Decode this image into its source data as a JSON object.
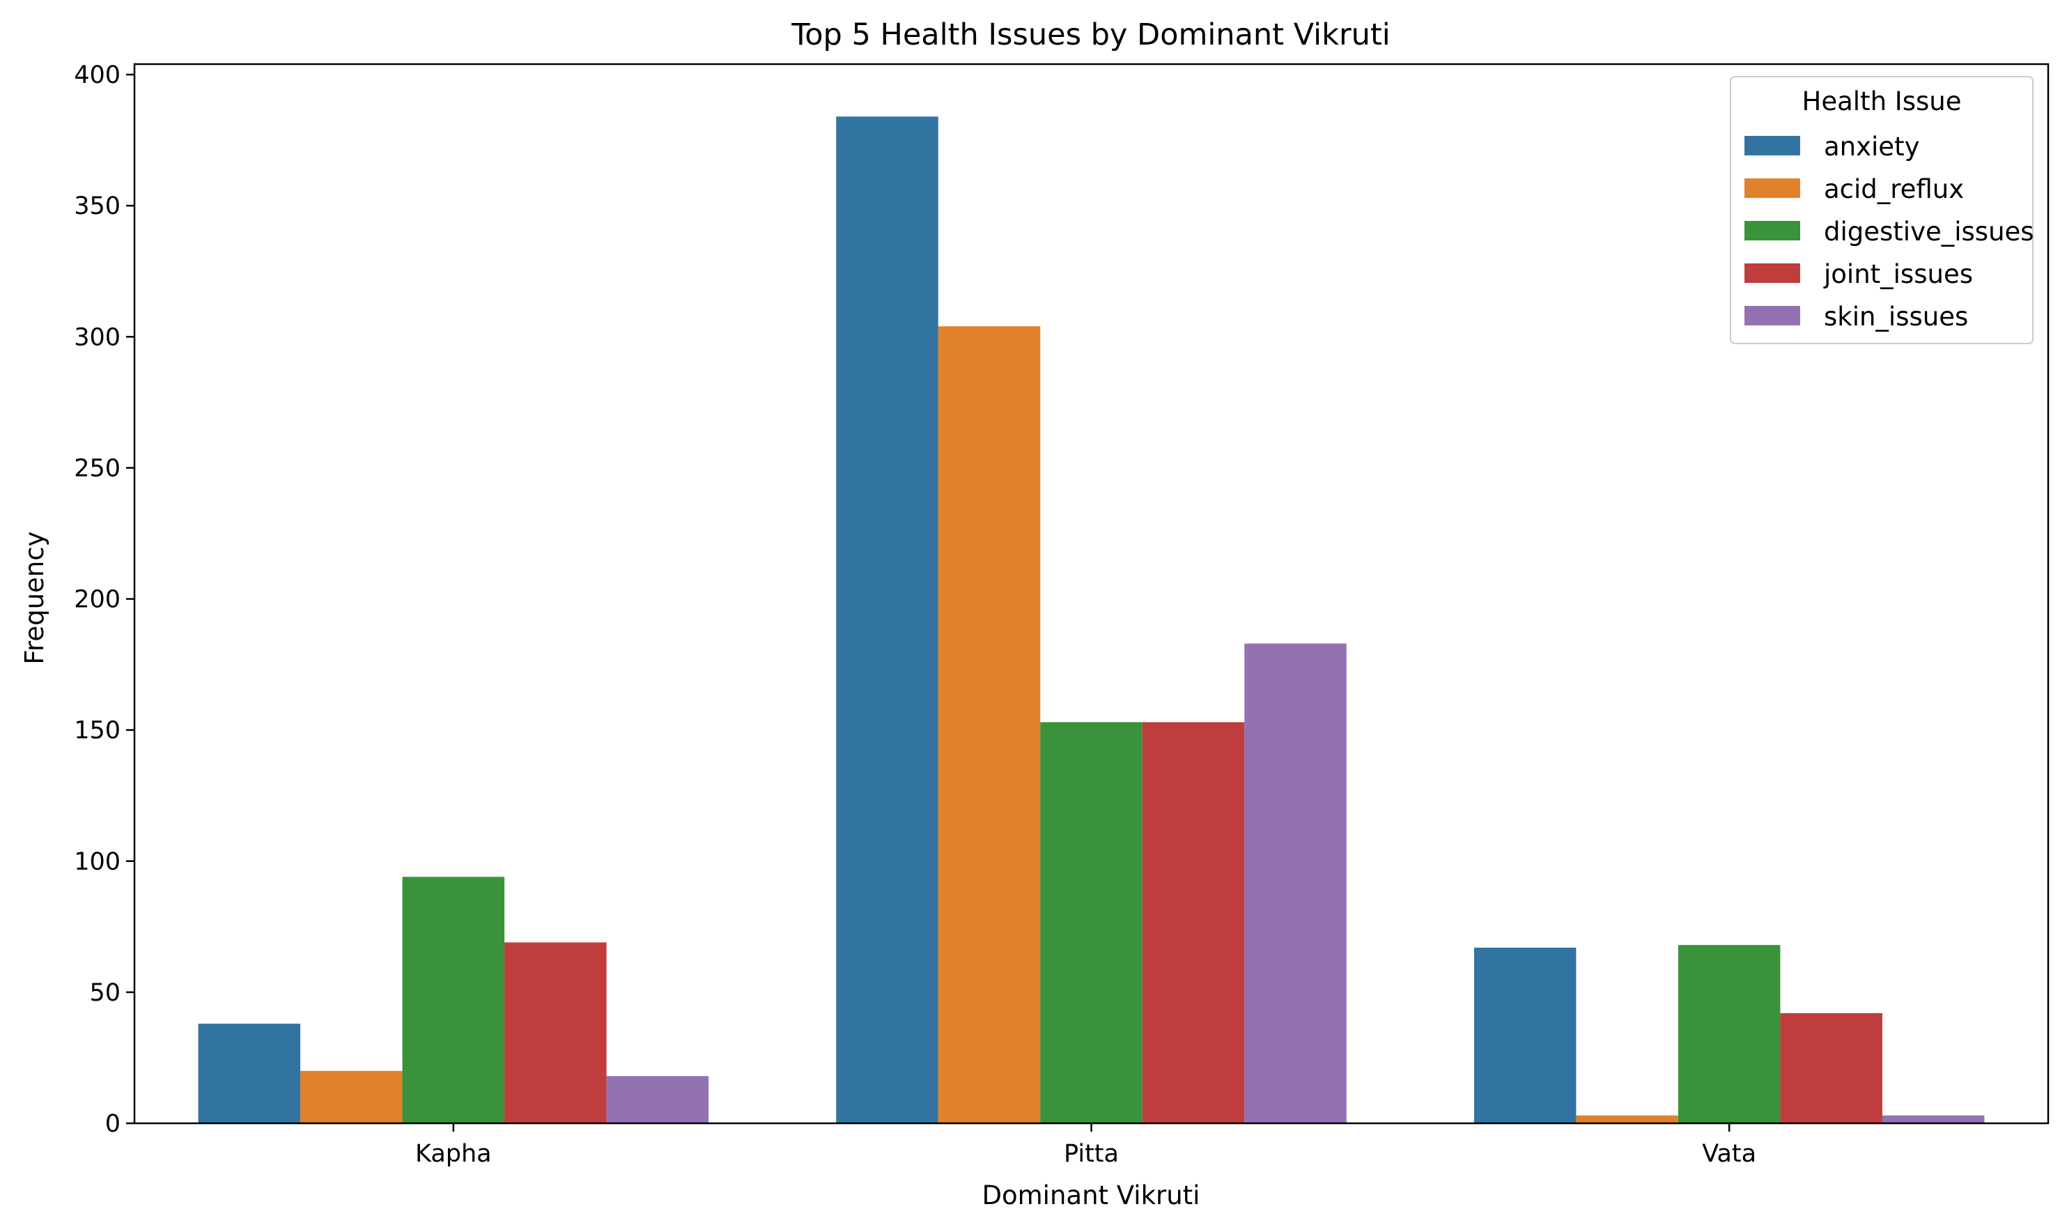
{
  "chart_data": {
    "type": "bar",
    "title": "Top 5 Health Issues by Dominant Vikruti",
    "xlabel": "Dominant Vikruti",
    "ylabel": "Frequency",
    "categories": [
      "Kapha",
      "Pitta",
      "Vata"
    ],
    "ylim": [
      0,
      404
    ],
    "yticks": [
      0,
      50,
      100,
      150,
      200,
      250,
      300,
      350,
      400
    ],
    "grid": false,
    "legend": {
      "title": "Health Issue",
      "placement": "top-right"
    },
    "series": [
      {
        "name": "anxiety",
        "color": "#3274a1",
        "values": [
          38,
          384,
          67
        ]
      },
      {
        "name": "acid_reflux",
        "color": "#e1812c",
        "values": [
          20,
          304,
          3
        ]
      },
      {
        "name": "digestive_issues",
        "color": "#3a923a",
        "values": [
          94,
          153,
          68
        ]
      },
      {
        "name": "joint_issues",
        "color": "#c03d3e",
        "values": [
          69,
          153,
          42
        ]
      },
      {
        "name": "skin_issues",
        "color": "#9372b2",
        "values": [
          18,
          183,
          3
        ]
      }
    ]
  }
}
